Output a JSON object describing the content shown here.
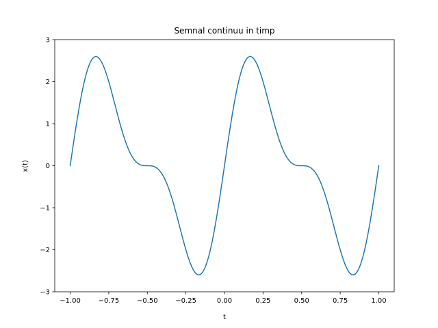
{
  "chart_data": {
    "type": "line",
    "title": "Semnal continuu in timp",
    "xlabel": "t",
    "ylabel": "x(t)",
    "xlim": [
      -1.1,
      1.1
    ],
    "ylim": [
      -3,
      3
    ],
    "x_ticks": [
      -1.0,
      -0.75,
      -0.5,
      -0.25,
      0.0,
      0.25,
      0.5,
      0.75,
      1.0
    ],
    "x_tick_labels": [
      "−1.00",
      "−0.75",
      "−0.50",
      "−0.25",
      "0.00",
      "0.25",
      "0.50",
      "0.75",
      "1.00"
    ],
    "y_ticks": [
      -3,
      -2,
      -1,
      0,
      1,
      2,
      3
    ],
    "y_tick_labels": [
      "−3",
      "−2",
      "−1",
      "0",
      "1",
      "2",
      "3"
    ],
    "grid": false,
    "series": [
      {
        "color": "#1f77b4",
        "function": "sin(2π·2t) + 2·sin(2π·1t)",
        "x_range": [
          -1.0,
          1.0
        ],
        "samples": 400
      }
    ]
  }
}
